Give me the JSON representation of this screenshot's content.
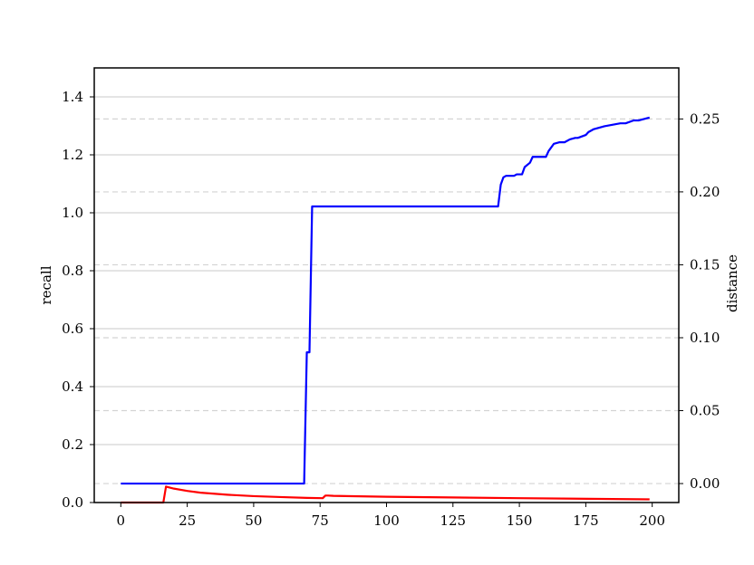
{
  "chart_data": {
    "type": "line",
    "xlabel": "",
    "ylabel": "recall",
    "y2label": "distance",
    "xlim": [
      -10,
      210
    ],
    "ylim": [
      0,
      1.5
    ],
    "y2lim": [
      -0.013,
      0.285
    ],
    "x_ticks": [
      0,
      25,
      50,
      75,
      100,
      125,
      150,
      175,
      200
    ],
    "y_ticks": [
      0.0,
      0.2,
      0.4,
      0.6,
      0.8,
      1.0,
      1.2,
      1.4
    ],
    "y2_ticks": [
      0.0,
      0.05,
      0.1,
      0.15,
      0.2,
      0.25
    ],
    "grid": "horizontal, solid for left axis, dashed for right axis",
    "series": [
      {
        "axis": "right",
        "color": "#0000ff",
        "x": [
          0,
          69,
          70,
          71,
          72,
          142,
          143,
          144,
          145,
          146,
          148,
          149,
          151,
          152,
          154,
          155,
          157,
          160,
          161,
          163,
          165,
          167,
          169,
          171,
          172,
          175,
          176,
          178,
          180,
          182,
          185,
          188,
          190,
          193,
          195,
          199
        ],
        "y": [
          0.0,
          0.0,
          0.09,
          0.09,
          0.19,
          0.19,
          0.205,
          0.21,
          0.211,
          0.211,
          0.211,
          0.212,
          0.212,
          0.217,
          0.22,
          0.224,
          0.224,
          0.224,
          0.228,
          0.233,
          0.234,
          0.234,
          0.236,
          0.237,
          0.237,
          0.239,
          0.241,
          0.243,
          0.244,
          0.245,
          0.246,
          0.247,
          0.247,
          0.249,
          0.249,
          0.251
        ]
      },
      {
        "axis": "left",
        "color": "#ff0000",
        "x": [
          0,
          16,
          17,
          20,
          25,
          30,
          40,
          50,
          60,
          70,
          76,
          77,
          78,
          80,
          100,
          150,
          199
        ],
        "y": [
          0.0,
          0.0,
          0.055,
          0.048,
          0.04,
          0.034,
          0.027,
          0.022,
          0.019,
          0.016,
          0.015,
          0.024,
          0.024,
          0.023,
          0.02,
          0.015,
          0.011
        ]
      }
    ]
  }
}
